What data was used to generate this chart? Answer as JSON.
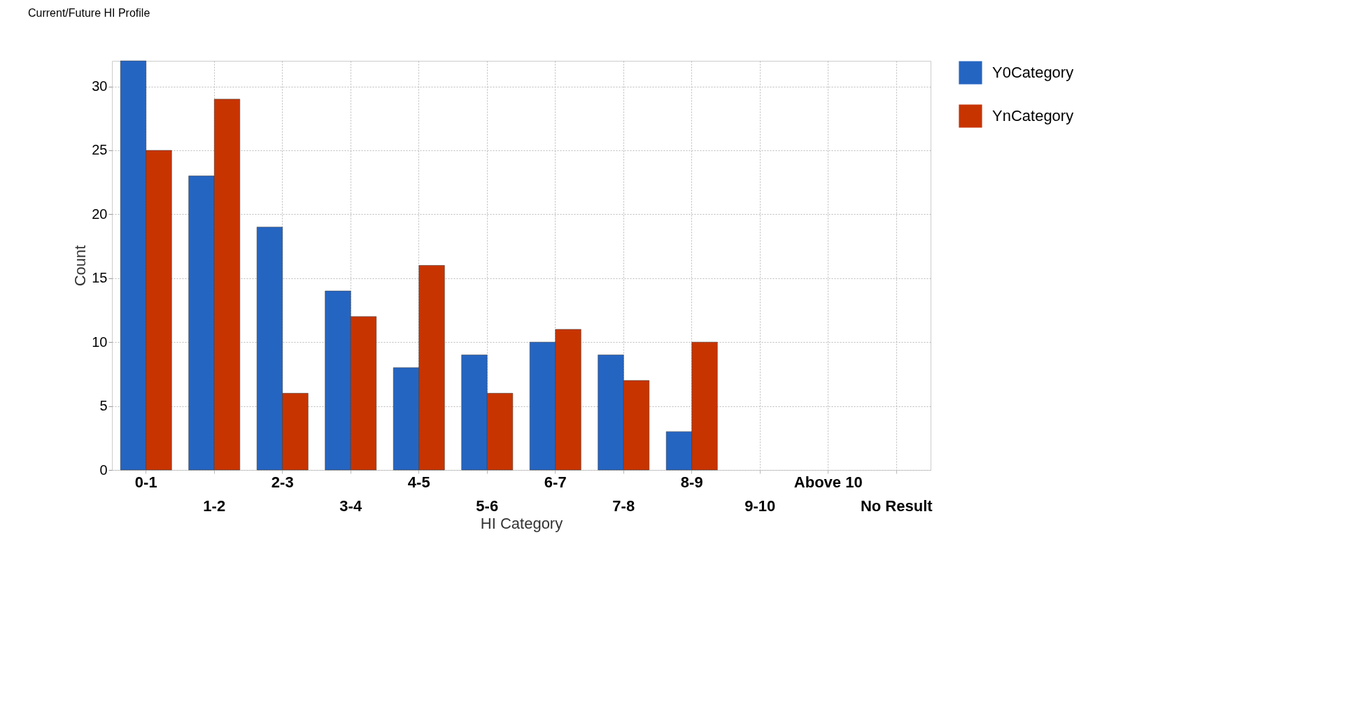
{
  "chart_data": {
    "type": "bar",
    "title": "Current/Future HI Profile",
    "xlabel": "HI Category",
    "ylabel": "Count",
    "categories": [
      "0-1",
      "1-2",
      "2-3",
      "3-4",
      "4-5",
      "5-6",
      "6-7",
      "7-8",
      "8-9",
      "9-10",
      "Above 10",
      "No Result"
    ],
    "series": [
      {
        "name": "Y0Category",
        "color": "#2565c2",
        "values": [
          32,
          23,
          19,
          14,
          8,
          9,
          10,
          9,
          3,
          null,
          null,
          null
        ]
      },
      {
        "name": "YnCategory",
        "color": "#c83400",
        "values": [
          25,
          29,
          6,
          12,
          16,
          6,
          11,
          7,
          10,
          null,
          null,
          null
        ]
      }
    ],
    "ylim": [
      0,
      32
    ],
    "yticks": [
      0,
      5,
      10,
      15,
      20,
      25,
      30
    ],
    "grid": true,
    "legend": "right"
  }
}
